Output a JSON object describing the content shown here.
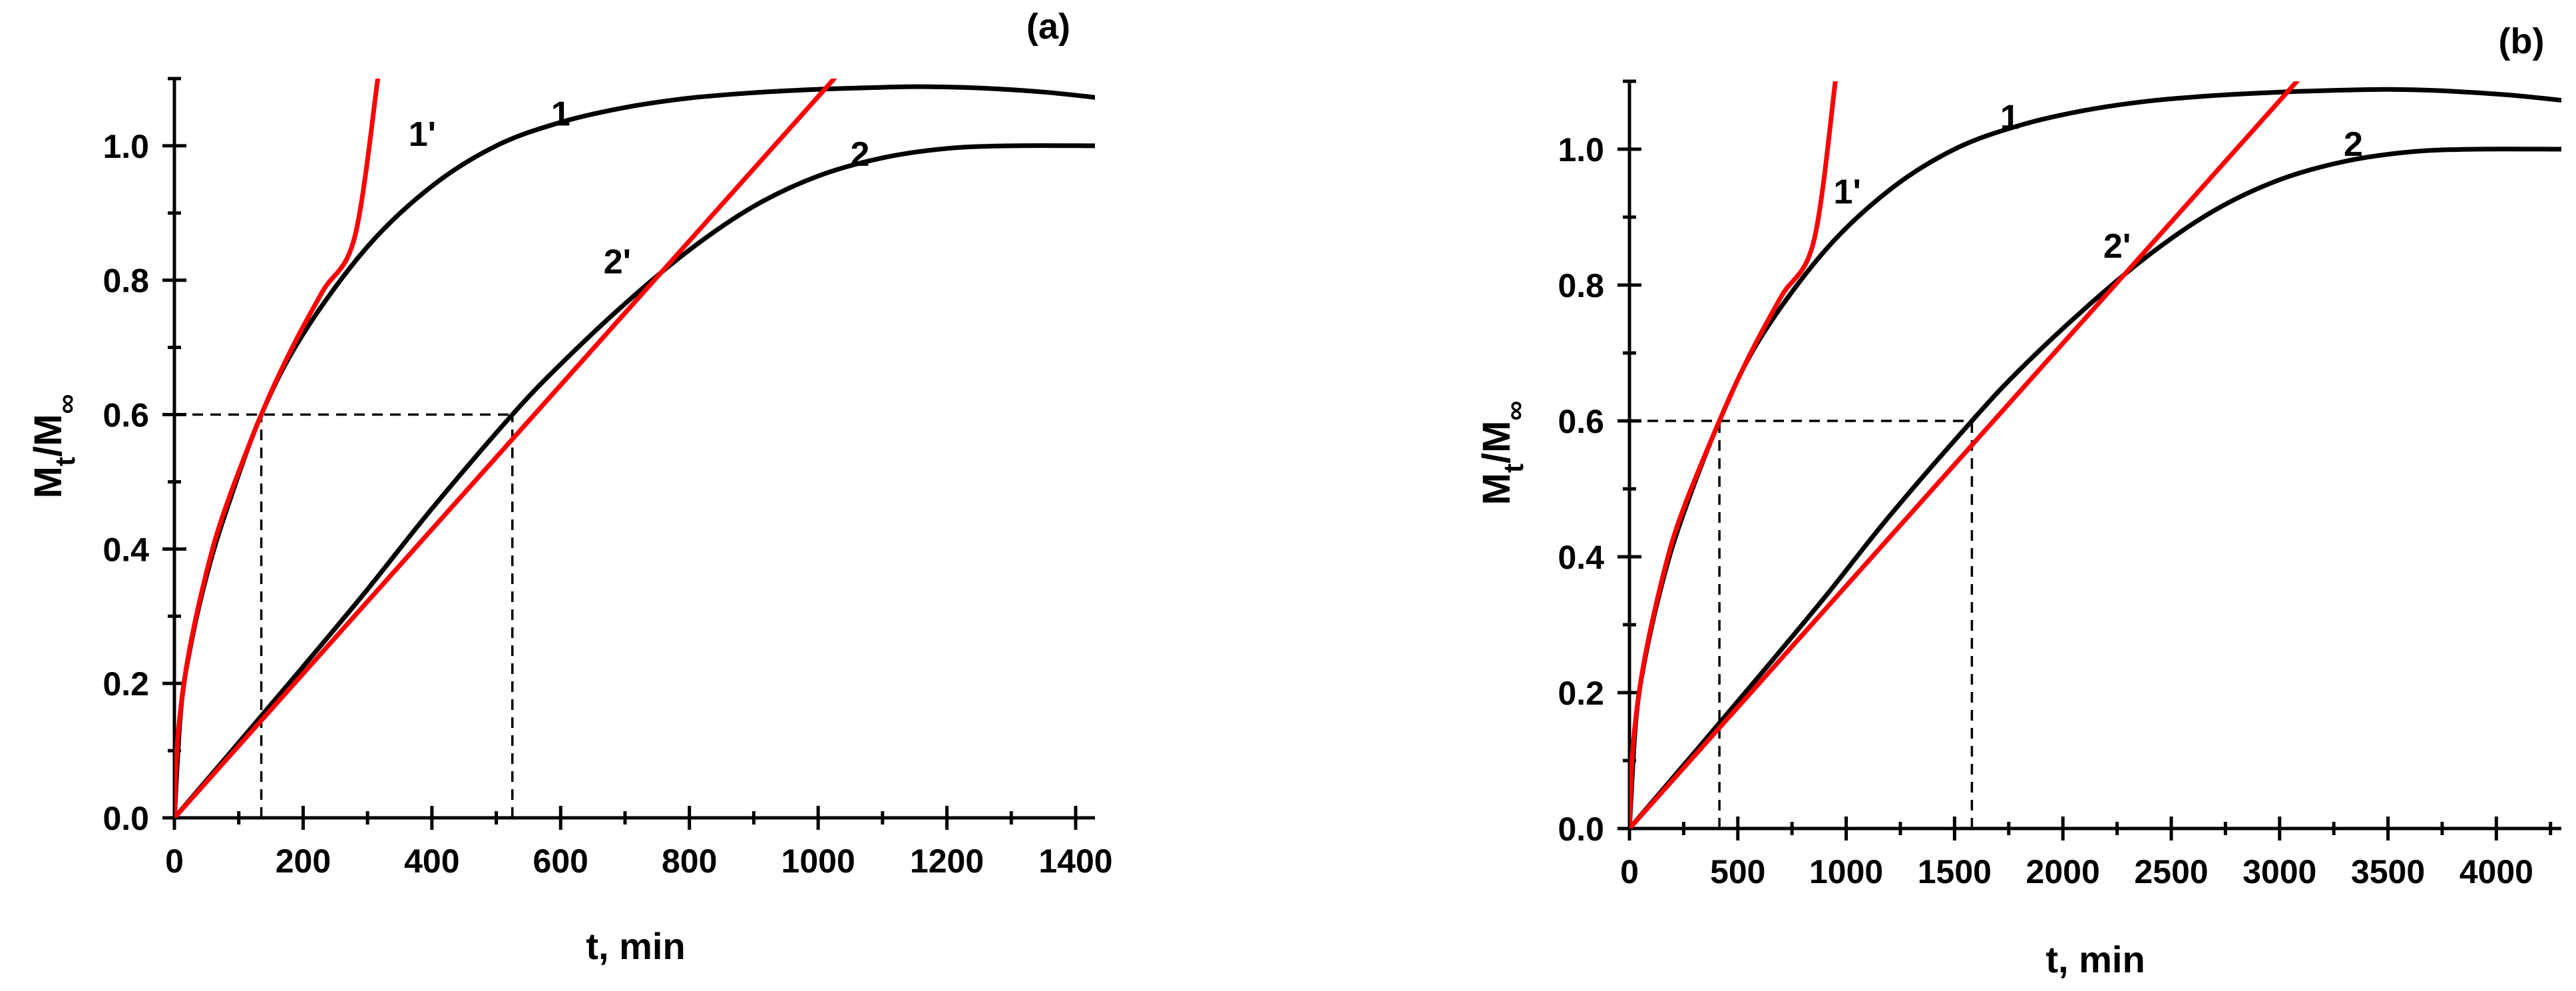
{
  "chart_data": [
    {
      "type": "line",
      "panel_label": "(a)",
      "xlabel": "t, min",
      "ylabel_main": "M",
      "ylabel_sub1": "t",
      "ylabel_mid": "/M",
      "ylabel_sub2": "∞",
      "xlim": [
        0,
        1430
      ],
      "ylim": [
        0,
        1.1
      ],
      "x_ticks": [
        0,
        200,
        400,
        600,
        800,
        1000,
        1200,
        1400
      ],
      "x_tick_labels": [
        "0",
        "200",
        "400",
        "600",
        "800",
        "1000",
        "1200",
        "1400"
      ],
      "y_ticks": [
        0.0,
        0.2,
        0.4,
        0.6,
        0.8,
        1.0
      ],
      "y_tick_labels": [
        "0.0",
        "0.2",
        "0.4",
        "0.6",
        "0.8",
        "1.0"
      ],
      "x_minor_step": 100,
      "y_minor_step": 0.1,
      "reference_lines": [
        {
          "name": "h-ref",
          "from": [
            0,
            0.6
          ],
          "to": [
            525,
            0.6
          ]
        },
        {
          "name": "v-ref-1",
          "from": [
            135,
            0
          ],
          "to": [
            135,
            0.6
          ]
        },
        {
          "name": "v-ref-2",
          "from": [
            525,
            0
          ],
          "to": [
            525,
            0.6
          ]
        }
      ],
      "series": [
        {
          "name": "1",
          "label": "1",
          "color": "#000000",
          "x": [
            0,
            10,
            25,
            50,
            80,
            135,
            200,
            300,
            400,
            500,
            600,
            700,
            800,
            900,
            1000,
            1100,
            1160,
            1250,
            1350,
            1430
          ],
          "y": [
            0,
            0.16,
            0.255,
            0.36,
            0.455,
            0.6,
            0.72,
            0.85,
            0.94,
            1.0,
            1.035,
            1.057,
            1.071,
            1.079,
            1.084,
            1.087,
            1.088,
            1.086,
            1.08,
            1.072
          ],
          "label_at": [
            600,
            1.03
          ]
        },
        {
          "name": "1'",
          "label": "1'",
          "color": "#ff0000",
          "x": [
            0,
            5,
            20,
            50,
            80,
            135,
            180,
            230,
            280,
            316
          ],
          "y": [
            0,
            0.116,
            0.232,
            0.366,
            0.463,
            0.6,
            0.694,
            0.783,
            0.864,
            1.1
          ],
          "label_at": [
            385,
            1.0
          ]
        },
        {
          "name": "2",
          "label": "2",
          "color": "#000000",
          "x": [
            0,
            100,
            200,
            300,
            400,
            525,
            600,
            700,
            800,
            900,
            1000,
            1100,
            1200,
            1300,
            1430
          ],
          "y": [
            0,
            0.112,
            0.225,
            0.34,
            0.46,
            0.6,
            0.675,
            0.765,
            0.845,
            0.91,
            0.955,
            0.982,
            0.996,
            1.0,
            1.0
          ],
          "label_at": [
            1065,
            0.97
          ]
        },
        {
          "name": "2'",
          "label": "2'",
          "color": "#ff0000",
          "x": [
            0,
            1025
          ],
          "y": [
            0,
            1.1
          ],
          "label_at": [
            688,
            0.81
          ]
        }
      ]
    },
    {
      "type": "line",
      "panel_label": "(b)",
      "xlabel": "t, min",
      "ylabel_main": "M",
      "ylabel_sub1": "t",
      "ylabel_mid": "/M",
      "ylabel_sub2": "∞",
      "xlim": [
        0,
        4300
      ],
      "ylim": [
        0,
        1.1
      ],
      "x_ticks": [
        0,
        500,
        1000,
        1500,
        2000,
        2500,
        3000,
        3500,
        4000
      ],
      "x_tick_labels": [
        "0",
        "500",
        "1000",
        "1500",
        "2000",
        "2500",
        "3000",
        "3500",
        "4000"
      ],
      "y_ticks": [
        0.0,
        0.2,
        0.4,
        0.6,
        0.8,
        1.0
      ],
      "y_tick_labels": [
        "0.0",
        "0.2",
        "0.4",
        "0.6",
        "0.8",
        "1.0"
      ],
      "x_minor_step": 250,
      "y_minor_step": 0.1,
      "reference_lines": [
        {
          "name": "h-ref",
          "from": [
            0,
            0.6
          ],
          "to": [
            1580,
            0.6
          ]
        },
        {
          "name": "v-ref-1",
          "from": [
            415,
            0
          ],
          "to": [
            415,
            0.6
          ]
        },
        {
          "name": "v-ref-2",
          "from": [
            1580,
            0
          ],
          "to": [
            1580,
            0.6
          ]
        }
      ],
      "series": [
        {
          "name": "1",
          "label": "1",
          "color": "#000000",
          "x": [
            0,
            30,
            75,
            150,
            240,
            415,
            600,
            900,
            1200,
            1500,
            1800,
            2100,
            2400,
            2700,
            3000,
            3300,
            3500,
            3750,
            4050,
            4300
          ],
          "y": [
            0,
            0.16,
            0.255,
            0.36,
            0.455,
            0.6,
            0.72,
            0.85,
            0.94,
            1.0,
            1.035,
            1.057,
            1.071,
            1.079,
            1.084,
            1.087,
            1.088,
            1.086,
            1.08,
            1.072
          ],
          "label_at": [
            1755,
            1.03
          ]
        },
        {
          "name": "1'",
          "label": "1'",
          "color": "#ff0000",
          "x": [
            0,
            15,
            60,
            150,
            240,
            415,
            550,
            700,
            850,
            950
          ],
          "y": [
            0,
            0.116,
            0.232,
            0.366,
            0.463,
            0.6,
            0.694,
            0.783,
            0.864,
            1.1
          ],
          "label_at": [
            1005,
            0.92
          ]
        },
        {
          "name": "2",
          "label": "2",
          "color": "#000000",
          "x": [
            0,
            300,
            600,
            900,
            1200,
            1580,
            1800,
            2100,
            2400,
            2700,
            3000,
            3300,
            3600,
            3900,
            4300
          ],
          "y": [
            0,
            0.112,
            0.225,
            0.34,
            0.46,
            0.6,
            0.675,
            0.765,
            0.845,
            0.91,
            0.955,
            0.982,
            0.996,
            1.0,
            1.0
          ],
          "label_at": [
            3340,
            0.99
          ]
        },
        {
          "name": "2'",
          "label": "2'",
          "color": "#ff0000",
          "x": [
            0,
            3080
          ],
          "y": [
            0,
            1.1
          ],
          "label_at": [
            2250,
            0.84
          ]
        }
      ]
    }
  ]
}
